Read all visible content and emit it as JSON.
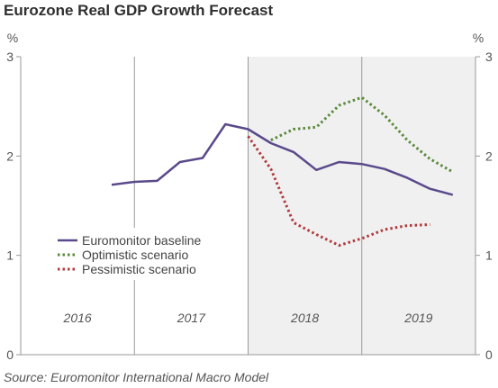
{
  "chart_data": {
    "type": "line",
    "title": "Eurozone Real GDP Growth Forecast",
    "source": "Source: Euromonitor International Macro Model",
    "y_unit_left": "%",
    "y_unit_right": "%",
    "ylim": [
      0,
      3
    ],
    "y_ticks": [
      "0",
      "1",
      "2",
      "3"
    ],
    "year_labels": [
      "2016",
      "2017",
      "2018",
      "2019"
    ],
    "forecast_shading_start": 2017.5,
    "grid": false,
    "legend_position": "bottom-left",
    "colors": {
      "baseline": "#5b4a8b",
      "optimistic": "#5a8a3a",
      "pessimistic": "#b03a3e",
      "shade": "#f0f0f0",
      "axis": "#999999"
    },
    "series": [
      {
        "name": "Euromonitor baseline",
        "style": "solid",
        "points": [
          [
            2016.0,
            1.71
          ],
          [
            2016.25,
            1.74
          ],
          [
            2016.5,
            1.75
          ],
          [
            2016.75,
            1.94
          ],
          [
            2017.0,
            1.98
          ],
          [
            2017.25,
            2.32
          ],
          [
            2017.5,
            2.27
          ],
          [
            2017.75,
            2.13
          ],
          [
            2018.0,
            2.04
          ],
          [
            2018.25,
            1.86
          ],
          [
            2018.5,
            1.94
          ],
          [
            2018.75,
            1.92
          ],
          [
            2019.0,
            1.87
          ],
          [
            2019.25,
            1.78
          ],
          [
            2019.5,
            1.67
          ],
          [
            2019.75,
            1.61
          ]
        ]
      },
      {
        "name": "Optimistic scenario",
        "style": "dotted",
        "points": [
          [
            2017.75,
            2.16
          ],
          [
            2018.0,
            2.27
          ],
          [
            2018.25,
            2.29
          ],
          [
            2018.5,
            2.51
          ],
          [
            2018.75,
            2.59
          ],
          [
            2019.0,
            2.41
          ],
          [
            2019.25,
            2.16
          ],
          [
            2019.5,
            1.97
          ],
          [
            2019.75,
            1.84
          ]
        ]
      },
      {
        "name": "Pessimistic scenario",
        "style": "dotted",
        "points": [
          [
            2017.5,
            2.2
          ],
          [
            2017.75,
            1.87
          ],
          [
            2018.0,
            1.33
          ],
          [
            2018.25,
            1.21
          ],
          [
            2018.5,
            1.1
          ],
          [
            2018.75,
            1.17
          ],
          [
            2019.0,
            1.26
          ],
          [
            2019.25,
            1.3
          ],
          [
            2019.5,
            1.31
          ]
        ]
      }
    ]
  }
}
